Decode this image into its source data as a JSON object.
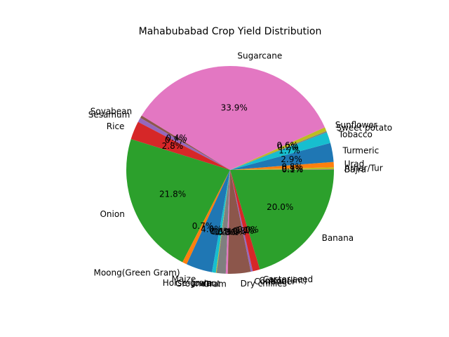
{
  "chart_data": {
    "type": "pie",
    "title": "Mahabubabad Crop Yield Distribution",
    "slices": [
      {
        "label": "Bajra",
        "value": 0.1,
        "pct_label": "0.1%",
        "color": "#7f7f7f"
      },
      {
        "label": "Arhar/Tur",
        "value": 0.3,
        "pct_label": "0.3%",
        "color": "#bcbd22"
      },
      {
        "label": "Urad",
        "value": 0.8,
        "pct_label": "0.8%",
        "color": "#ff7f0e"
      },
      {
        "label": "Turmeric",
        "value": 2.9,
        "pct_label": "2.9%",
        "color": "#1f77b4"
      },
      {
        "label": "Tobacco",
        "value": 1.7,
        "pct_label": "1.7%",
        "color": "#17becf"
      },
      {
        "label": "Sweet potato",
        "value": 0.2,
        "pct_label": "0.2%",
        "color": "#7f7f7f"
      },
      {
        "label": "Sunflower",
        "value": 0.6,
        "pct_label": "0.6%",
        "color": "#bcbd22"
      },
      {
        "label": "Sugarcane",
        "value": 33.9,
        "pct_label": "33.9%",
        "color": "#e377c2"
      },
      {
        "label": "Soyabean",
        "value": 0.4,
        "pct_label": "0.4%",
        "color": "#8c564b"
      },
      {
        "label": "Sesamum",
        "value": 0.7,
        "pct_label": "0.7%",
        "color": "#9467bd"
      },
      {
        "label": "Rice",
        "value": 2.8,
        "pct_label": "2.8%",
        "color": "#d62728"
      },
      {
        "label": "Onion",
        "value": 21.8,
        "pct_label": "21.8%",
        "color": "#2ca02c"
      },
      {
        "label": "Moong(Green Gram)",
        "value": 0.7,
        "pct_label": "0.7%",
        "color": "#ff7f0e"
      },
      {
        "label": "Maize",
        "value": 4.0,
        "pct_label": "4.0%",
        "color": "#1f77b4"
      },
      {
        "label": "Horse-gram",
        "value": 0.6,
        "pct_label": "0.6%",
        "color": "#17becf"
      },
      {
        "label": "Jowar",
        "value": 0.1,
        "pct_label": "0.1%",
        "color": "#bcbd22"
      },
      {
        "label": "Groundnut",
        "value": 1.4,
        "pct_label": "1.4%",
        "color": "#7f7f7f"
      },
      {
        "label": "Gram",
        "value": 0.3,
        "pct_label": "0.3%",
        "color": "#e377c2"
      },
      {
        "label": "Dry chillies",
        "value": 3.5,
        "pct_label": "3.5%",
        "color": "#8c564b"
      },
      {
        "label": "Coriander",
        "value": 0.3,
        "pct_label": "0.3%",
        "color": "#9467bd"
      },
      {
        "label": "Cotton(lint)",
        "value": 1.1,
        "pct_label": "1.1%",
        "color": "#d62728"
      },
      {
        "label": "Castor seed",
        "value": 0.0,
        "pct_label": "0.0%",
        "color": "#ff7f0e"
      },
      {
        "label": "Banana",
        "value": 20.0,
        "pct_label": "20.0%",
        "color": "#2ca02c"
      }
    ],
    "slice_labels": [
      "Bajra",
      "Arhar/Tur",
      "Urad",
      "Turmeric",
      "Tobacco",
      "Sweet potato",
      "Sunflower",
      "Sugarcane",
      "Soyabean",
      "Sesamum",
      "Rice",
      "Onion",
      "Moong(Green Gram)",
      "Maize",
      "Horse-gram",
      "Jowar",
      "Groundnut",
      "Gram",
      "Dry chillies",
      "Coriander",
      "Cotton(lint)",
      "Castor seed",
      "Banana"
    ],
    "pct_labels": [
      "0.1%",
      "0.3%",
      "0.8%",
      "2.9%",
      "1.7%",
      "0.2%",
      "0.6%",
      "33.9%",
      "0.4%",
      "0.7%",
      "2.8%",
      "21.8%",
      "0.7%",
      "4.0%",
      "0.6%",
      "0.1%",
      "1.4%",
      "0.3%",
      "3.5%",
      "0.3%",
      "1.1%",
      "0.0%",
      "20.0%"
    ],
    "start_angle_deg": 0,
    "direction": "counterclockwise",
    "legend": "none"
  }
}
